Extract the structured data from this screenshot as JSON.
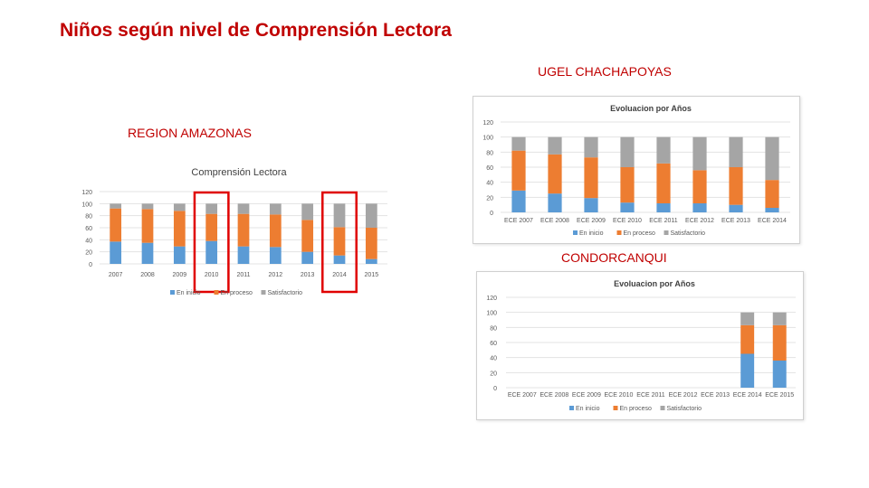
{
  "slide": {
    "title": "Niños según nivel de Comprensión Lectora",
    "region_label": "REGION AMAZONAS",
    "ugel_label": "UGEL CHACHAPOYAS",
    "condorcanqui_label": "CONDORCANQUI"
  },
  "colors": {
    "en_inicio": "#5b9bd5",
    "en_proceso": "#ed7d31",
    "satisfactorio": "#a5a5a5",
    "highlight": "#e00000",
    "accent": "#c00000"
  },
  "chart_data": [
    {
      "id": "region",
      "type": "bar",
      "stacked": true,
      "title": "Comprensión Lectora",
      "categories": [
        "2007",
        "2008",
        "2009",
        "2010",
        "2011",
        "2012",
        "2013",
        "2014",
        "2015"
      ],
      "series": [
        {
          "name": "En inicio",
          "values": [
            37,
            35,
            29,
            38,
            29,
            28,
            20,
            14,
            8
          ]
        },
        {
          "name": "En proceso",
          "values": [
            55,
            56,
            59,
            45,
            54,
            54,
            53,
            47,
            52
          ]
        },
        {
          "name": "Satisfactorio",
          "values": [
            8,
            9,
            12,
            17,
            17,
            18,
            27,
            39,
            40
          ]
        }
      ],
      "ylim": [
        0,
        120
      ],
      "yticks": [
        0,
        20,
        40,
        60,
        80,
        100,
        120
      ],
      "highlighted_categories": [
        "2010",
        "2014"
      ],
      "legend": "bottom",
      "grid": true
    },
    {
      "id": "chachapoyas",
      "type": "bar",
      "stacked": true,
      "title": "Evoluacion por Años",
      "categories": [
        "ECE 2007",
        "ECE 2008",
        "ECE 2009",
        "ECE 2010",
        "ECE 2011",
        "ECE 2012",
        "ECE 2013",
        "ECE 2014"
      ],
      "series": [
        {
          "name": "En inicio",
          "values": [
            29,
            25,
            19,
            13,
            12,
            12,
            10,
            6
          ]
        },
        {
          "name": "En proceso",
          "values": [
            53,
            52,
            54,
            47,
            53,
            44,
            50,
            37
          ]
        },
        {
          "name": "Satisfactorio",
          "values": [
            18,
            23,
            27,
            40,
            35,
            44,
            40,
            57
          ]
        }
      ],
      "ylim": [
        0,
        120
      ],
      "yticks": [
        0,
        20,
        40,
        60,
        80,
        100,
        120
      ],
      "legend": "bottom",
      "grid": true
    },
    {
      "id": "condorcanqui",
      "type": "bar",
      "stacked": true,
      "title": "Evoluacion por Años",
      "categories": [
        "ECE 2007",
        "ECE 2008",
        "ECE 2009",
        "ECE 2010",
        "ECE 2011",
        "ECE 2012",
        "ECE 2013",
        "ECE 2014",
        "ECE 2015"
      ],
      "series": [
        {
          "name": "En inicio",
          "values": [
            null,
            null,
            null,
            null,
            null,
            null,
            null,
            45,
            36
          ]
        },
        {
          "name": "En proceso",
          "values": [
            null,
            null,
            null,
            null,
            null,
            null,
            null,
            38,
            47
          ]
        },
        {
          "name": "Satisfactorio",
          "values": [
            null,
            null,
            null,
            null,
            null,
            null,
            null,
            17,
            17
          ]
        }
      ],
      "ylim": [
        0,
        120
      ],
      "yticks": [
        0,
        20,
        40,
        60,
        80,
        100,
        120
      ],
      "legend": "bottom",
      "grid": true
    }
  ]
}
